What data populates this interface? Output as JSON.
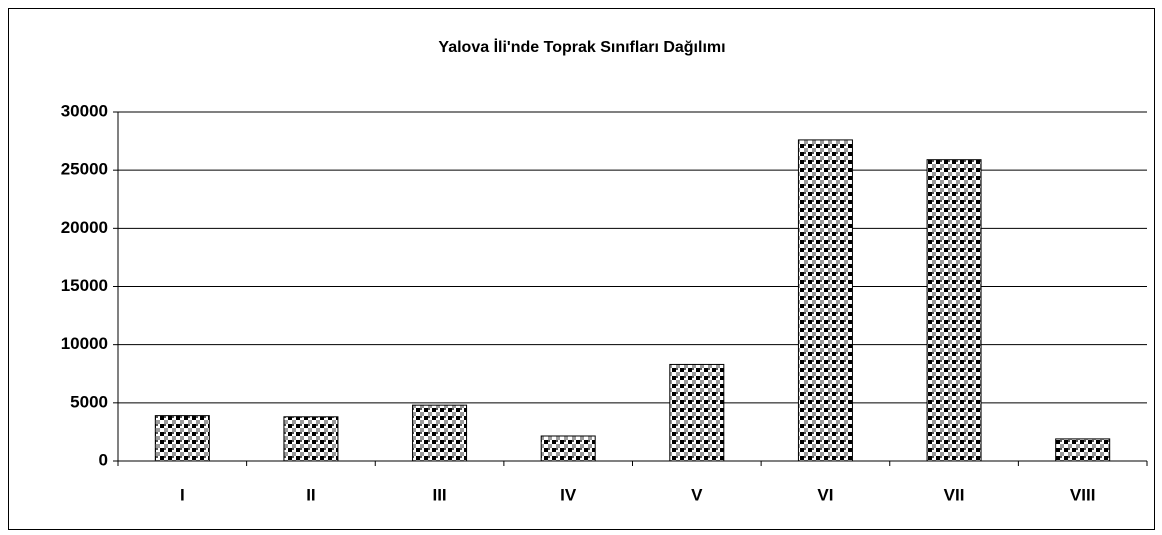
{
  "chart_data": {
    "type": "bar",
    "title": "Yalova İli'nde Toprak Sınıfları Dağılımı",
    "categories": [
      "I",
      "II",
      "III",
      "IV",
      "V",
      "VI",
      "VII",
      "VIII"
    ],
    "values": [
      3900,
      3800,
      4800,
      2150,
      8300,
      27600,
      25900,
      1900
    ],
    "color": "#000000",
    "ylim": [
      0,
      30000
    ],
    "yticks": [
      0,
      5000,
      10000,
      15000,
      20000,
      25000,
      30000
    ],
    "grid": true
  }
}
